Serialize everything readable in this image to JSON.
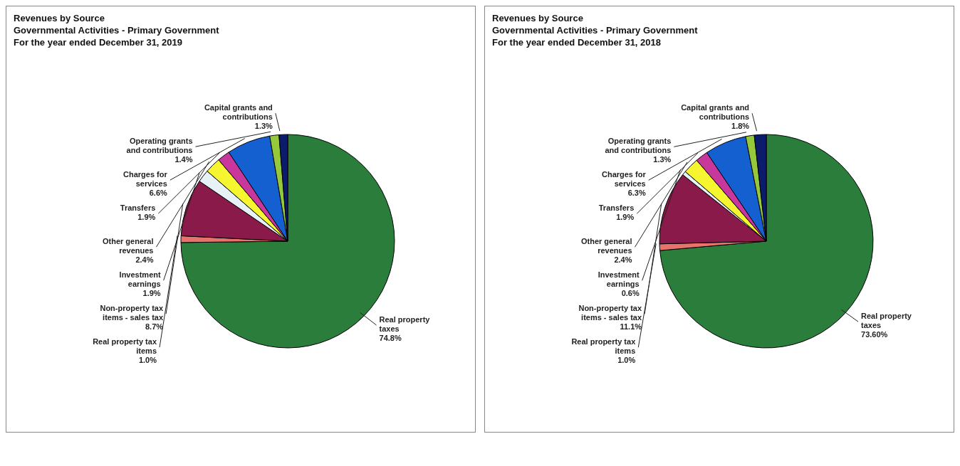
{
  "chart_data": [
    {
      "type": "pie",
      "title": "Revenues by Source",
      "subtitle": "Governmental Activities - Primary Government\nFor the year ended December 31, 2019",
      "categories": [
        "Real property taxes",
        "Real property tax items",
        "Non-property tax items - sales tax",
        "Investment earnings",
        "Other general revenues",
        "Transfers",
        "Charges for services",
        "Operating grants and contributions",
        "Capital grants and contributions"
      ],
      "values": [
        74.8,
        1.0,
        8.7,
        1.9,
        2.4,
        1.9,
        6.6,
        1.4,
        1.3
      ],
      "value_labels": [
        "74.8%",
        "1.0%",
        "8.7%",
        "1.9%",
        "2.4%",
        "1.9%",
        "6.6%",
        "1.4%",
        "1.3%"
      ],
      "colors": [
        "#2a7d3a",
        "#e8736c",
        "#8a1a4a",
        "#e6f2f6",
        "#f5f530",
        "#c8379c",
        "#1560d0",
        "#96c83c",
        "#0c1c6a"
      ]
    },
    {
      "type": "pie",
      "title": "Revenues by Source",
      "subtitle": "Governmental Activities - Primary Government\nFor the year ended December 31, 2018",
      "categories": [
        "Real property taxes",
        "Real property tax items",
        "Non-property tax items - sales tax",
        "Investment earnings",
        "Other general revenues",
        "Transfers",
        "Charges for services",
        "Operating grants and contributions",
        "Capital grants and contributions"
      ],
      "values": [
        73.6,
        1.0,
        11.1,
        0.6,
        2.4,
        1.9,
        6.3,
        1.3,
        1.8
      ],
      "value_labels": [
        "73.60%",
        "1.0%",
        "11.1%",
        "0.6%",
        "2.4%",
        "1.9%",
        "6.3%",
        "1.3%",
        "1.8%"
      ],
      "colors": [
        "#2a7d3a",
        "#e8736c",
        "#8a1a4a",
        "#e6f2f6",
        "#f5f530",
        "#c8379c",
        "#1560d0",
        "#96c83c",
        "#0c1c6a"
      ]
    }
  ]
}
